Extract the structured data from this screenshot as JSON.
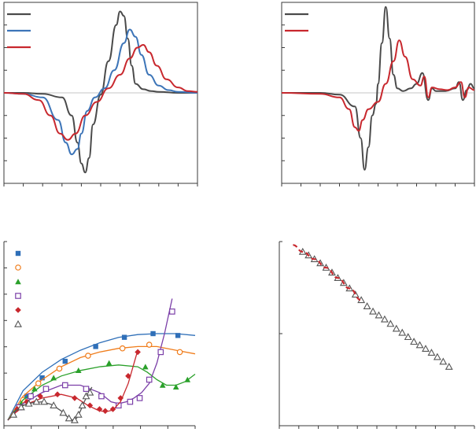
{
  "chart_data": [
    {
      "type": "line",
      "legend": "top-left",
      "axis_range": {
        "x": [
          0,
          10
        ],
        "y": [
          -1,
          1
        ]
      },
      "x_ticks": 10,
      "y_ticks": 8,
      "series": [
        {
          "color": "#4a4a4a",
          "x": [
            0,
            1,
            2,
            3,
            3.5,
            3.8,
            4.0,
            4.2,
            4.4,
            4.6,
            5.0,
            5.4,
            5.8,
            6.0,
            6.2,
            6.4,
            6.6,
            6.8,
            7.2,
            7.6,
            8,
            9,
            10
          ],
          "y": [
            0,
            0,
            -0.01,
            -0.05,
            -0.25,
            -0.55,
            -0.78,
            -0.88,
            -0.72,
            -0.35,
            -0.02,
            0.35,
            0.75,
            0.9,
            0.85,
            0.6,
            0.3,
            0.1,
            0.04,
            0.02,
            0.01,
            0,
            0
          ]
        },
        {
          "color": "#3d75b8",
          "x": [
            0,
            1,
            2,
            2.8,
            3.2,
            3.5,
            3.8,
            4.0,
            4.3,
            4.7,
            5.2,
            5.7,
            6.2,
            6.5,
            6.8,
            7.1,
            7.5,
            8,
            8.5,
            9,
            10
          ],
          "y": [
            0,
            -0.01,
            -0.05,
            -0.3,
            -0.55,
            -0.68,
            -0.62,
            -0.45,
            -0.2,
            -0.05,
            0.05,
            0.25,
            0.55,
            0.7,
            0.62,
            0.42,
            0.2,
            0.08,
            0.03,
            0.01,
            0
          ]
        },
        {
          "color": "#c8282e",
          "x": [
            0,
            1,
            1.8,
            2.4,
            2.9,
            3.3,
            3.7,
            4.2,
            4.8,
            5.4,
            6.0,
            6.5,
            6.9,
            7.2,
            7.5,
            7.9,
            8.4,
            9,
            9.5,
            10
          ],
          "y": [
            0,
            -0.01,
            -0.08,
            -0.25,
            -0.45,
            -0.52,
            -0.45,
            -0.25,
            -0.1,
            0.05,
            0.2,
            0.38,
            0.5,
            0.53,
            0.45,
            0.3,
            0.15,
            0.06,
            0.02,
            0.01
          ]
        }
      ]
    },
    {
      "type": "line",
      "legend": "top-left",
      "axis_range": {
        "x": [
          0,
          10
        ],
        "y": [
          -1,
          1
        ]
      },
      "x_ticks": 10,
      "y_ticks": 8,
      "series": [
        {
          "color": "#4a4a4a",
          "x": [
            0,
            2,
            3,
            3.8,
            4.1,
            4.3,
            4.5,
            4.7,
            4.9,
            5.0,
            5.2,
            5.4,
            5.6,
            5.8,
            6.0,
            6.3,
            6.7,
            7.0,
            7.3,
            7.6,
            7.8,
            8.0,
            8.5,
            9.0,
            9.2,
            9.4,
            9.6,
            9.8,
            10
          ],
          "y": [
            0,
            0,
            -0.02,
            -0.15,
            -0.5,
            -0.85,
            -0.6,
            -0.25,
            -0.12,
            0.1,
            0.55,
            0.95,
            0.6,
            0.2,
            0.05,
            0.02,
            0.05,
            0.1,
            0.22,
            -0.08,
            0.05,
            0.02,
            0.02,
            0.05,
            0.12,
            -0.08,
            0.03,
            0.1,
            0.05
          ]
        },
        {
          "color": "#c8282e",
          "x": [
            0,
            2,
            3,
            3.5,
            3.8,
            4.0,
            4.2,
            4.5,
            5.0,
            5.4,
            5.8,
            6.1,
            6.4,
            6.8,
            7.2,
            7.4,
            7.6,
            7.8,
            8.2,
            8.6,
            9.0,
            9.3,
            9.5,
            9.7,
            10
          ],
          "y": [
            0,
            -0.01,
            -0.05,
            -0.18,
            -0.38,
            -0.42,
            -0.3,
            -0.18,
            -0.1,
            0.1,
            0.35,
            0.58,
            0.4,
            0.15,
            0.08,
            0.18,
            -0.05,
            0.06,
            0.04,
            0.03,
            0.06,
            0.12,
            -0.05,
            0.06,
            0.03
          ]
        }
      ]
    },
    {
      "type": "scatter",
      "legend": "top-left",
      "axis_range": {
        "x": [
          0,
          10
        ],
        "y": [
          0,
          10
        ]
      },
      "x_ticks": 7,
      "y_ticks": 7,
      "series": [
        {
          "color": "#2f6fb8",
          "marker": "square",
          "x": [
            1.2,
            2.0,
            3.2,
            4.8,
            6.3,
            7.8,
            9.1
          ],
          "y": [
            1.6,
            2.6,
            3.5,
            4.3,
            4.8,
            5.0,
            4.9
          ],
          "fit_x": [
            0.2,
            1,
            2,
            3,
            4,
            5,
            6,
            7,
            8,
            9,
            10
          ],
          "fit_y": [
            0.3,
            1.9,
            2.9,
            3.6,
            4.1,
            4.5,
            4.8,
            4.95,
            5.0,
            5.0,
            4.9
          ]
        },
        {
          "color": "#f07d1c",
          "marker": "circle-open",
          "x": [
            1.0,
            1.8,
            2.9,
            4.4,
            6.2,
            7.6,
            9.2
          ],
          "y": [
            1.4,
            2.3,
            3.1,
            3.8,
            4.2,
            4.4,
            4.0
          ],
          "fit_x": [
            0.2,
            1,
            2,
            3,
            4,
            5,
            6,
            7,
            8,
            9,
            10
          ],
          "fit_y": [
            0.3,
            1.6,
            2.5,
            3.2,
            3.7,
            4.0,
            4.2,
            4.3,
            4.3,
            4.1,
            3.9
          ]
        },
        {
          "color": "#2aa02a",
          "marker": "triangle",
          "x": [
            0.9,
            1.6,
            2.6,
            3.9,
            5.5,
            7.4,
            8.3,
            9.0,
            9.6
          ],
          "y": [
            1.2,
            2.0,
            2.6,
            3.0,
            3.4,
            3.2,
            2.2,
            2.1,
            2.5
          ],
          "fit_x": [
            0.2,
            1,
            2,
            3,
            4,
            5,
            6,
            7,
            7.5,
            8,
            8.5,
            9,
            9.5,
            10
          ],
          "fit_y": [
            0.3,
            1.4,
            2.2,
            2.7,
            3.0,
            3.2,
            3.3,
            3.2,
            2.9,
            2.5,
            2.2,
            2.2,
            2.4,
            2.8
          ]
        },
        {
          "color": "#7b3fa8",
          "marker": "square-open",
          "x": [
            0.8,
            1.4,
            2.2,
            3.2,
            4.3,
            5.1,
            6.0,
            6.6,
            7.1,
            7.6,
            8.2,
            8.8
          ],
          "y": [
            1.0,
            1.6,
            2.0,
            2.2,
            2.0,
            1.6,
            1.1,
            1.3,
            1.5,
            2.5,
            4.0,
            6.2
          ],
          "fit_x": [
            0.2,
            1,
            2,
            3,
            4,
            5,
            5.6,
            6.0,
            6.4,
            6.8,
            7.2,
            7.6,
            8.0,
            8.4,
            8.8
          ],
          "fit_y": [
            0.3,
            1.2,
            1.8,
            2.2,
            2.2,
            1.8,
            1.3,
            1.2,
            1.3,
            1.5,
            1.8,
            2.3,
            3.4,
            5.0,
            6.9
          ]
        },
        {
          "color": "#c8282e",
          "marker": "diamond",
          "x": [
            0.7,
            1.2,
            1.9,
            2.8,
            3.7,
            4.5,
            5.0,
            5.3,
            5.7,
            6.1,
            6.5,
            7.0
          ],
          "y": [
            0.9,
            1.3,
            1.6,
            1.7,
            1.5,
            1.1,
            0.9,
            0.8,
            0.9,
            1.5,
            2.7,
            4.0
          ],
          "fit_x": [
            0.2,
            1,
            2,
            3,
            3.8,
            4.4,
            4.9,
            5.3,
            5.7,
            6.1,
            6.5,
            7.0
          ],
          "fit_y": [
            0.3,
            1.1,
            1.5,
            1.7,
            1.5,
            1.1,
            0.85,
            0.75,
            0.85,
            1.3,
            2.3,
            4.1
          ]
        },
        {
          "color": "#555555",
          "marker": "triangle-open",
          "x": [
            0.5,
            0.9,
            1.3,
            1.7,
            2.1,
            2.6,
            3.1,
            3.4,
            3.7,
            3.9,
            4.1,
            4.3,
            4.5
          ],
          "y": [
            0.6,
            1.0,
            1.2,
            1.3,
            1.3,
            1.1,
            0.7,
            0.4,
            0.3,
            0.6,
            1.1,
            1.6,
            1.8
          ],
          "fit_x": [
            0.2,
            0.6,
            1,
            1.5,
            2,
            2.5,
            3,
            3.3,
            3.6,
            3.8,
            4.0,
            4.2,
            4.4,
            4.6
          ],
          "fit_y": [
            0.3,
            0.8,
            1.1,
            1.25,
            1.3,
            1.15,
            0.8,
            0.5,
            0.3,
            0.4,
            0.8,
            1.3,
            1.7,
            2.1
          ]
        }
      ]
    },
    {
      "type": "scatter",
      "axis_range": {
        "x": [
          0,
          10
        ],
        "y": [
          0,
          10
        ]
      },
      "y_scale": "log",
      "x_ticks": 10,
      "y_ticks": 2,
      "series": [
        {
          "color": "#555555",
          "marker": "triangle-open",
          "x": [
            1.2,
            1.5,
            1.8,
            2.1,
            2.4,
            2.7,
            3.0,
            3.3,
            3.6,
            3.9,
            4.2,
            4.5,
            4.8,
            5.1,
            5.4,
            5.7,
            6.0,
            6.3,
            6.6,
            6.9,
            7.2,
            7.5,
            7.8,
            8.1,
            8.4,
            8.7
          ],
          "y": [
            9.0,
            8.4,
            7.8,
            7.2,
            6.6,
            6.0,
            5.4,
            4.9,
            4.4,
            3.9,
            3.5,
            3.1,
            2.8,
            2.6,
            2.4,
            2.2,
            2.0,
            1.85,
            1.7,
            1.55,
            1.45,
            1.35,
            1.25,
            1.15,
            1.05,
            0.95
          ]
        },
        {
          "color": "#c8282e",
          "style": "dashed",
          "x": [
            0.7,
            1.2,
            1.8,
            2.4,
            3.0,
            3.6,
            4.2
          ],
          "y": [
            10.3,
            9.0,
            7.8,
            6.6,
            5.4,
            4.4,
            3.5
          ]
        }
      ]
    }
  ]
}
